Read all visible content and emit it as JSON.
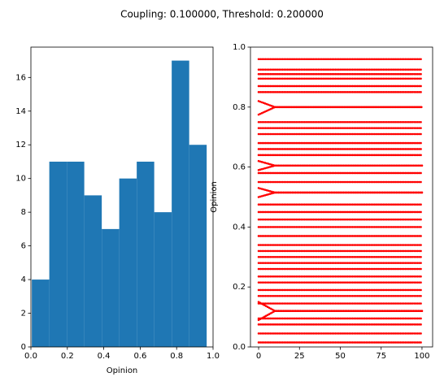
{
  "title": "Coupling: 0.100000, Threshold: 0.200000",
  "chart_data": [
    {
      "type": "histogram",
      "xlabel": "Opinion",
      "color": "#1f77b4",
      "bins": [
        0.005,
        0.101,
        0.197,
        0.293,
        0.389,
        0.485,
        0.581,
        0.677,
        0.773,
        0.869,
        0.965
      ],
      "values": [
        4,
        11,
        11,
        9,
        7,
        10,
        11,
        8,
        17,
        12
      ],
      "xlim": [
        0,
        1
      ],
      "xticks": [
        {
          "value": 0,
          "label": "0.0"
        },
        {
          "value": 0.2,
          "label": "0.2"
        },
        {
          "value": 0.4,
          "label": "0.4"
        },
        {
          "value": 0.6,
          "label": "0.6"
        },
        {
          "value": 0.8,
          "label": "0.8"
        },
        {
          "value": 1,
          "label": "1.0"
        }
      ],
      "ylim": [
        0,
        17.8
      ],
      "yticks": [
        0,
        2,
        4,
        6,
        8,
        10,
        12,
        14,
        16
      ]
    },
    {
      "type": "scatter",
      "ylabel": "Opinion",
      "color": "#ff0000",
      "x": [
        0,
        10,
        100
      ],
      "series": [
        {
          "values": [
            0.015,
            0.015,
            0.015
          ]
        },
        {
          "values": [
            0.045,
            0.045,
            0.045
          ]
        },
        {
          "values": [
            0.075,
            0.075,
            0.075
          ]
        },
        {
          "values": [
            0.095,
            0.095,
            0.095
          ]
        },
        {
          "values": [
            0.09,
            0.12,
            0.12
          ]
        },
        {
          "values": [
            0.15,
            0.12,
            0.12
          ]
        },
        {
          "values": [
            0.145,
            0.145,
            0.145
          ]
        },
        {
          "values": [
            0.17,
            0.17,
            0.17
          ]
        },
        {
          "values": [
            0.19,
            0.19,
            0.19
          ]
        },
        {
          "values": [
            0.215,
            0.215,
            0.215
          ]
        },
        {
          "values": [
            0.235,
            0.235,
            0.235
          ]
        },
        {
          "values": [
            0.26,
            0.26,
            0.26
          ]
        },
        {
          "values": [
            0.28,
            0.28,
            0.28
          ]
        },
        {
          "values": [
            0.3,
            0.3,
            0.3
          ]
        },
        {
          "values": [
            0.32,
            0.32,
            0.32
          ]
        },
        {
          "values": [
            0.34,
            0.34,
            0.34
          ]
        },
        {
          "values": [
            0.37,
            0.37,
            0.37
          ]
        },
        {
          "values": [
            0.4,
            0.4,
            0.4
          ]
        },
        {
          "values": [
            0.425,
            0.425,
            0.425
          ]
        },
        {
          "values": [
            0.45,
            0.45,
            0.45
          ]
        },
        {
          "values": [
            0.475,
            0.475,
            0.475
          ]
        },
        {
          "values": [
            0.5,
            0.515,
            0.515
          ]
        },
        {
          "values": [
            0.53,
            0.515,
            0.515
          ]
        },
        {
          "values": [
            0.55,
            0.55,
            0.55
          ]
        },
        {
          "values": [
            0.58,
            0.58,
            0.58
          ]
        },
        {
          "values": [
            0.59,
            0.605,
            0.605
          ]
        },
        {
          "values": [
            0.62,
            0.605,
            0.605
          ]
        },
        {
          "values": [
            0.64,
            0.64,
            0.64
          ]
        },
        {
          "values": [
            0.66,
            0.66,
            0.66
          ]
        },
        {
          "values": [
            0.68,
            0.68,
            0.68
          ]
        },
        {
          "values": [
            0.71,
            0.71,
            0.71
          ]
        },
        {
          "values": [
            0.73,
            0.73,
            0.73
          ]
        },
        {
          "values": [
            0.75,
            0.75,
            0.75
          ]
        },
        {
          "values": [
            0.775,
            0.8,
            0.8
          ]
        },
        {
          "values": [
            0.82,
            0.8,
            0.8
          ]
        },
        {
          "values": [
            0.85,
            0.85,
            0.85
          ]
        },
        {
          "values": [
            0.87,
            0.87,
            0.87
          ]
        },
        {
          "values": [
            0.895,
            0.895,
            0.895
          ]
        },
        {
          "values": [
            0.91,
            0.91,
            0.91
          ]
        },
        {
          "values": [
            0.925,
            0.925,
            0.925
          ]
        },
        {
          "values": [
            0.96,
            0.96,
            0.96
          ]
        }
      ],
      "xlim": [
        -5,
        106.5
      ],
      "xticks": [
        0,
        25,
        50,
        75,
        100
      ],
      "ylim": [
        0,
        1
      ],
      "yticks": [
        {
          "value": 0,
          "label": "0.0"
        },
        {
          "value": 0.2,
          "label": "0.2"
        },
        {
          "value": 0.4,
          "label": "0.4"
        },
        {
          "value": 0.6,
          "label": "0.6"
        },
        {
          "value": 0.8,
          "label": "0.8"
        },
        {
          "value": 1,
          "label": "1.0"
        }
      ]
    }
  ]
}
